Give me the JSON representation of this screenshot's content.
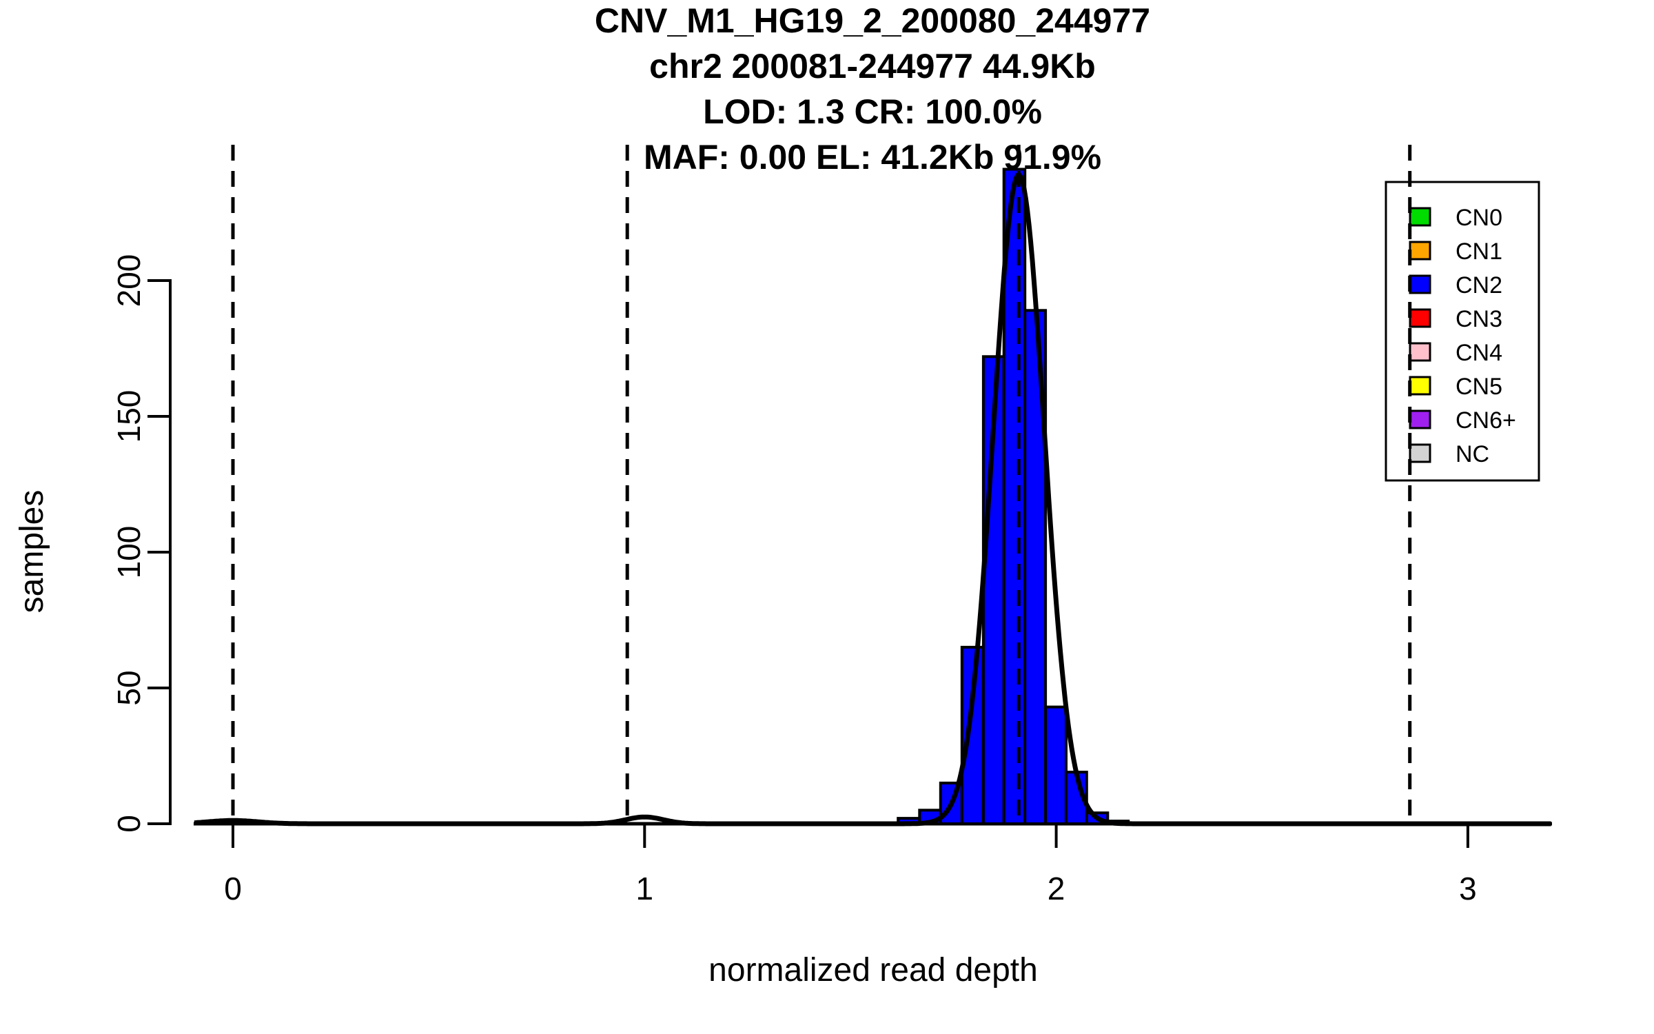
{
  "title": {
    "lines": [
      "CNV_M1_HG19_2_200080_244977",
      "chr2 200081-244977 44.9Kb",
      "LOD: 1.3 CR: 100.0%",
      "MAF: 0.00 EL: 41.2Kb 91.9%"
    ]
  },
  "axes": {
    "x": {
      "label": "normalized read depth",
      "ticks": [
        "0",
        "1",
        "2",
        "3"
      ],
      "tick_values": [
        0,
        1,
        2,
        3
      ]
    },
    "y": {
      "label": "samples",
      "ticks": [
        "0",
        "50",
        "100",
        "150",
        "200"
      ],
      "tick_values": [
        0,
        50,
        100,
        150,
        200
      ]
    }
  },
  "legend": {
    "items": [
      {
        "label": "CN0",
        "color": "#00DB00"
      },
      {
        "label": "CN1",
        "color": "#FFA500"
      },
      {
        "label": "CN2",
        "color": "#0000FF"
      },
      {
        "label": "CN3",
        "color": "#FF0000"
      },
      {
        "label": "CN4",
        "color": "#FFC0CB"
      },
      {
        "label": "CN5",
        "color": "#FFFF00"
      },
      {
        "label": "CN6+",
        "color": "#A020F0"
      },
      {
        "label": "NC",
        "color": "#D3D3D3"
      }
    ]
  },
  "colors": {
    "histogram_fill": "#0000FF",
    "histogram_border": "#000000",
    "curve": "#000000",
    "dashed_line": "#000000",
    "axis": "#000000",
    "background": "#FFFFFF"
  },
  "chart_data": {
    "type": "bar",
    "subtype": "histogram",
    "title": "CNV_M1_HG19_2_200080_244977 | chr2 200081-244977 44.9Kb | LOD: 1.3 CR: 100.0% | MAF: 0.00 EL: 41.2Kb 91.9%",
    "xlabel": "normalized read depth",
    "ylabel": "samples",
    "xlim": [
      -0.09,
      3.2
    ],
    "ylim": [
      0,
      250
    ],
    "grid": false,
    "legend_position": "top-right",
    "series_label": "CN2",
    "bin_edges": [
      1.616,
      1.668,
      1.719,
      1.771,
      1.823,
      1.873,
      1.924,
      1.974,
      2.024,
      2.074,
      2.125,
      2.175
    ],
    "counts": [
      2,
      5,
      15,
      65,
      172,
      241,
      189,
      43,
      19,
      4,
      1
    ],
    "fit_curve": {
      "type": "gaussian-mixture",
      "x_range": [
        -0.094,
        3.205
      ],
      "components": [
        {
          "mean": 1.909,
          "sd": 0.062,
          "peak": 239
        },
        {
          "mean": 1.0,
          "sd": 0.045,
          "peak": 2.5
        },
        {
          "mean": 0.0,
          "sd": 0.06,
          "peak": 1.2
        }
      ]
    },
    "dashed_lines_x": [
      0.0,
      0.958,
      1.909,
      2.859
    ]
  }
}
